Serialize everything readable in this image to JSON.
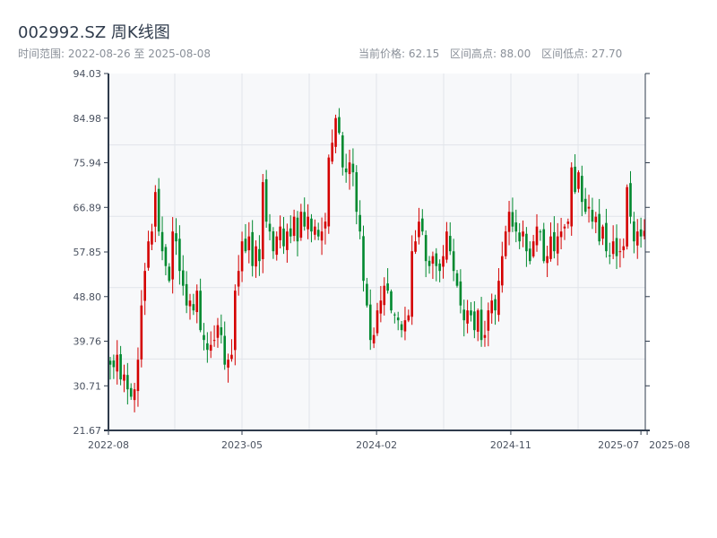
{
  "header": {
    "title": "002992.SZ 周K线图",
    "range_label": "时间范围: 2022-08-26 至 2025-08-08",
    "current_price": "当前价格: 62.15",
    "period_high": "区间高点: 88.00",
    "period_low": "区间低点: 27.70"
  },
  "colors": {
    "up": "#d40000",
    "down": "#00892f",
    "axis": "#2f3b4c",
    "grid": "#e1e4ea",
    "plot_bg": "#f7f8fa"
  },
  "chart_data": {
    "type": "candlestick",
    "title": "002992.SZ 周K线图",
    "frequency": "weekly",
    "start": "2022-08-26",
    "end": "2025-08-08",
    "ylim": [
      21.67,
      94.03
    ],
    "yticks": [
      "21.67",
      "30.71",
      "39.76",
      "48.80",
      "57.85",
      "66.89",
      "75.94",
      "84.98",
      "94.03"
    ],
    "xticks": [
      {
        "label": "2022-08",
        "week": 0
      },
      {
        "label": "2023-05",
        "week": 38.5
      },
      {
        "label": "2024-02",
        "week": 77.3
      },
      {
        "label": "2024-11",
        "week": 116
      },
      {
        "label": "2025-07",
        "week": 153
      },
      {
        "label": "2025-08",
        "week": 154.8
      }
    ],
    "close": [
      35,
      34.5,
      37,
      32,
      33,
      30,
      28.5,
      30,
      36,
      47,
      54,
      60,
      62,
      70,
      62,
      58,
      55,
      52,
      62,
      60,
      54,
      51,
      47,
      48,
      46,
      50,
      42,
      40,
      38,
      39,
      40,
      43,
      41,
      35,
      36,
      37,
      50,
      54,
      60,
      58,
      61,
      55,
      59,
      56,
      72,
      64,
      62,
      58,
      61,
      63,
      59,
      62,
      61,
      65,
      60,
      66,
      63,
      65,
      62,
      63,
      61,
      62,
      64,
      77,
      80,
      85,
      82,
      75,
      74,
      76,
      74,
      66,
      62,
      52,
      47,
      40,
      41,
      46,
      48,
      51,
      50,
      46,
      45,
      44,
      42,
      44,
      45,
      58,
      60,
      64,
      62,
      56,
      55,
      57,
      55,
      54,
      57,
      62,
      58,
      54,
      51,
      47,
      44,
      46,
      45,
      42,
      46,
      40,
      41,
      46,
      48,
      46,
      52,
      57,
      62,
      66,
      63,
      62,
      60,
      62,
      58,
      56,
      60,
      63,
      62,
      56,
      57,
      61,
      58,
      61,
      62,
      63,
      64,
      75,
      70,
      74,
      68,
      66,
      67,
      64,
      65,
      60,
      63,
      58,
      57,
      60,
      57,
      58,
      59,
      71,
      65,
      60,
      62,
      61,
      62.15
    ]
  }
}
